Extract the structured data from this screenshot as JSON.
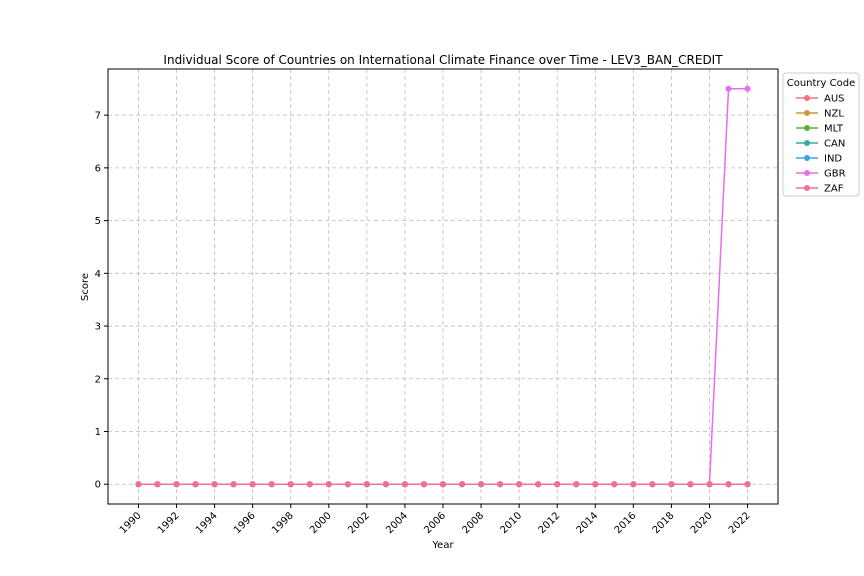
{
  "chart_data": {
    "type": "line",
    "title": "Individual Score of Countries on International Climate Finance over Time - LEV3_BAN_CREDIT",
    "xlabel": "Year",
    "ylabel": "Score",
    "xlim": [
      1988.4,
      2023.6
    ],
    "ylim": [
      -0.375,
      7.875
    ],
    "xticks": [
      1990,
      1992,
      1994,
      1996,
      1998,
      2000,
      2002,
      2004,
      2006,
      2008,
      2010,
      2012,
      2014,
      2016,
      2018,
      2020,
      2022
    ],
    "xtick_labels": [
      "1990",
      "1992",
      "1994",
      "1996",
      "1998",
      "2000",
      "2002",
      "2004",
      "2006",
      "2008",
      "2010",
      "2012",
      "2014",
      "2016",
      "2018",
      "2020",
      "2022"
    ],
    "yticks": [
      0,
      1,
      2,
      3,
      4,
      5,
      6,
      7
    ],
    "ytick_labels": [
      "0",
      "1",
      "2",
      "3",
      "4",
      "5",
      "6",
      "7"
    ],
    "grid": true,
    "legend_title": "Country Code",
    "legend_position": "outside-right-top",
    "x": [
      1990,
      1991,
      1992,
      1993,
      1994,
      1995,
      1996,
      1997,
      1998,
      1999,
      2000,
      2001,
      2002,
      2003,
      2004,
      2005,
      2006,
      2007,
      2008,
      2009,
      2010,
      2011,
      2012,
      2013,
      2014,
      2015,
      2016,
      2017,
      2018,
      2019,
      2020,
      2021,
      2022
    ],
    "series": [
      {
        "name": "AUS",
        "color": "#f0717f",
        "values": [
          0,
          0,
          0,
          0,
          0,
          0,
          0,
          0,
          0,
          0,
          0,
          0,
          0,
          0,
          0,
          0,
          0,
          0,
          0,
          0,
          0,
          0,
          0,
          0,
          0,
          0,
          0,
          0,
          0,
          0,
          0,
          0,
          0
        ]
      },
      {
        "name": "NZL",
        "color": "#c79a3f",
        "values": [
          0,
          0,
          0,
          0,
          0,
          0,
          0,
          0,
          0,
          0,
          0,
          0,
          0,
          0,
          0,
          0,
          0,
          0,
          0,
          0,
          0,
          0,
          0,
          0,
          0,
          0,
          0,
          0,
          0,
          0,
          0,
          0,
          0
        ]
      },
      {
        "name": "MLT",
        "color": "#5cb038",
        "values": [
          0,
          0,
          0,
          0,
          0,
          0,
          0,
          0,
          0,
          0,
          0,
          0,
          0,
          0,
          0,
          0,
          0,
          0,
          0,
          0,
          0,
          0,
          0,
          0,
          0,
          0,
          0,
          0,
          0,
          0,
          0,
          0,
          0
        ]
      },
      {
        "name": "CAN",
        "color": "#35ad9c",
        "values": [
          0,
          0,
          0,
          0,
          0,
          0,
          0,
          0,
          0,
          0,
          0,
          0,
          0,
          0,
          0,
          0,
          0,
          0,
          0,
          0,
          0,
          0,
          0,
          0,
          0,
          0,
          0,
          0,
          0,
          0,
          0,
          0,
          0
        ]
      },
      {
        "name": "IND",
        "color": "#3ba3e8",
        "values": [
          0,
          0,
          0,
          0,
          0,
          0,
          0,
          0,
          0,
          0,
          0,
          0,
          0,
          0,
          0,
          0,
          0,
          0,
          0,
          0,
          0,
          0,
          0,
          0,
          0,
          0,
          0,
          0,
          0,
          0,
          0,
          0,
          0
        ]
      },
      {
        "name": "GBR",
        "color": "#e76ef0",
        "values": [
          0,
          0,
          0,
          0,
          0,
          0,
          0,
          0,
          0,
          0,
          0,
          0,
          0,
          0,
          0,
          0,
          0,
          0,
          0,
          0,
          0,
          0,
          0,
          0,
          0,
          0,
          0,
          0,
          0,
          0,
          0,
          7.5,
          7.5
        ]
      },
      {
        "name": "ZAF",
        "color": "#f2718f",
        "values": [
          0,
          0,
          0,
          0,
          0,
          0,
          0,
          0,
          0,
          0,
          0,
          0,
          0,
          0,
          0,
          0,
          0,
          0,
          0,
          0,
          0,
          0,
          0,
          0,
          0,
          0,
          0,
          0,
          0,
          0,
          0,
          0,
          0
        ]
      }
    ]
  }
}
